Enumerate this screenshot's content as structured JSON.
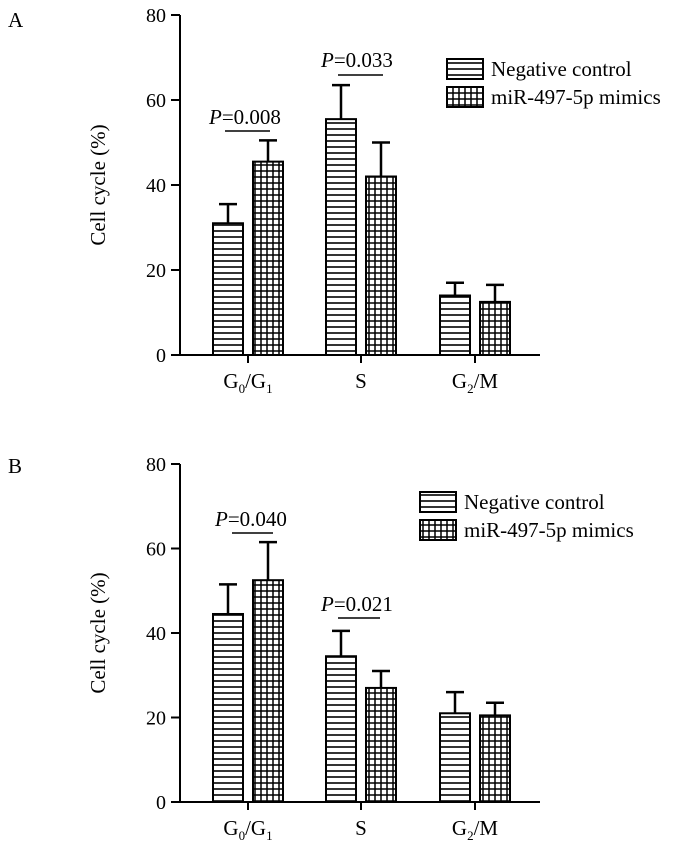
{
  "chart_data": [
    {
      "panel_label": "A",
      "type": "bar",
      "categories": [
        {
          "base": "G",
          "sub0": "0",
          "mid": "/G",
          "sub1": "1"
        },
        {
          "base": "S"
        },
        {
          "base": "G",
          "sub0": "2",
          "mid": "/M"
        }
      ],
      "series": [
        {
          "name": "Negative control",
          "values": [
            31,
            55.5,
            14
          ],
          "errors": [
            4.5,
            8,
            3
          ]
        },
        {
          "name": "miR-497-5p mimics",
          "values": [
            45.5,
            42,
            12.5
          ],
          "errors": [
            5,
            8,
            4
          ]
        }
      ],
      "ylabel": "Cell cycle (%)",
      "ylim": [
        0,
        80
      ],
      "yticks": [
        0,
        20,
        40,
        60,
        80
      ],
      "legend": "top-right",
      "annotations": [
        {
          "category": 0,
          "prefix": "P",
          "text": "=0.008"
        },
        {
          "category": 1,
          "prefix": "P",
          "text": "=0.033"
        }
      ]
    },
    {
      "panel_label": "B",
      "type": "bar",
      "categories": [
        {
          "base": "G",
          "sub0": "0",
          "mid": "/G",
          "sub1": "1"
        },
        {
          "base": "S"
        },
        {
          "base": "G",
          "sub0": "2",
          "mid": "/M"
        }
      ],
      "series": [
        {
          "name": "Negative control",
          "values": [
            44.5,
            34.5,
            21
          ],
          "errors": [
            7,
            6,
            5
          ]
        },
        {
          "name": "miR-497-5p mimics",
          "values": [
            52.5,
            27,
            20.5
          ],
          "errors": [
            9,
            4,
            3
          ]
        }
      ],
      "ylabel": "Cell cycle (%)",
      "ylim": [
        0,
        80
      ],
      "yticks": [
        0,
        20,
        40,
        60,
        80
      ],
      "legend": "top-right",
      "annotations": [
        {
          "category": 0,
          "prefix": "P",
          "text": "=0.040"
        },
        {
          "category": 1,
          "prefix": "P",
          "text": "=0.021"
        }
      ]
    }
  ]
}
